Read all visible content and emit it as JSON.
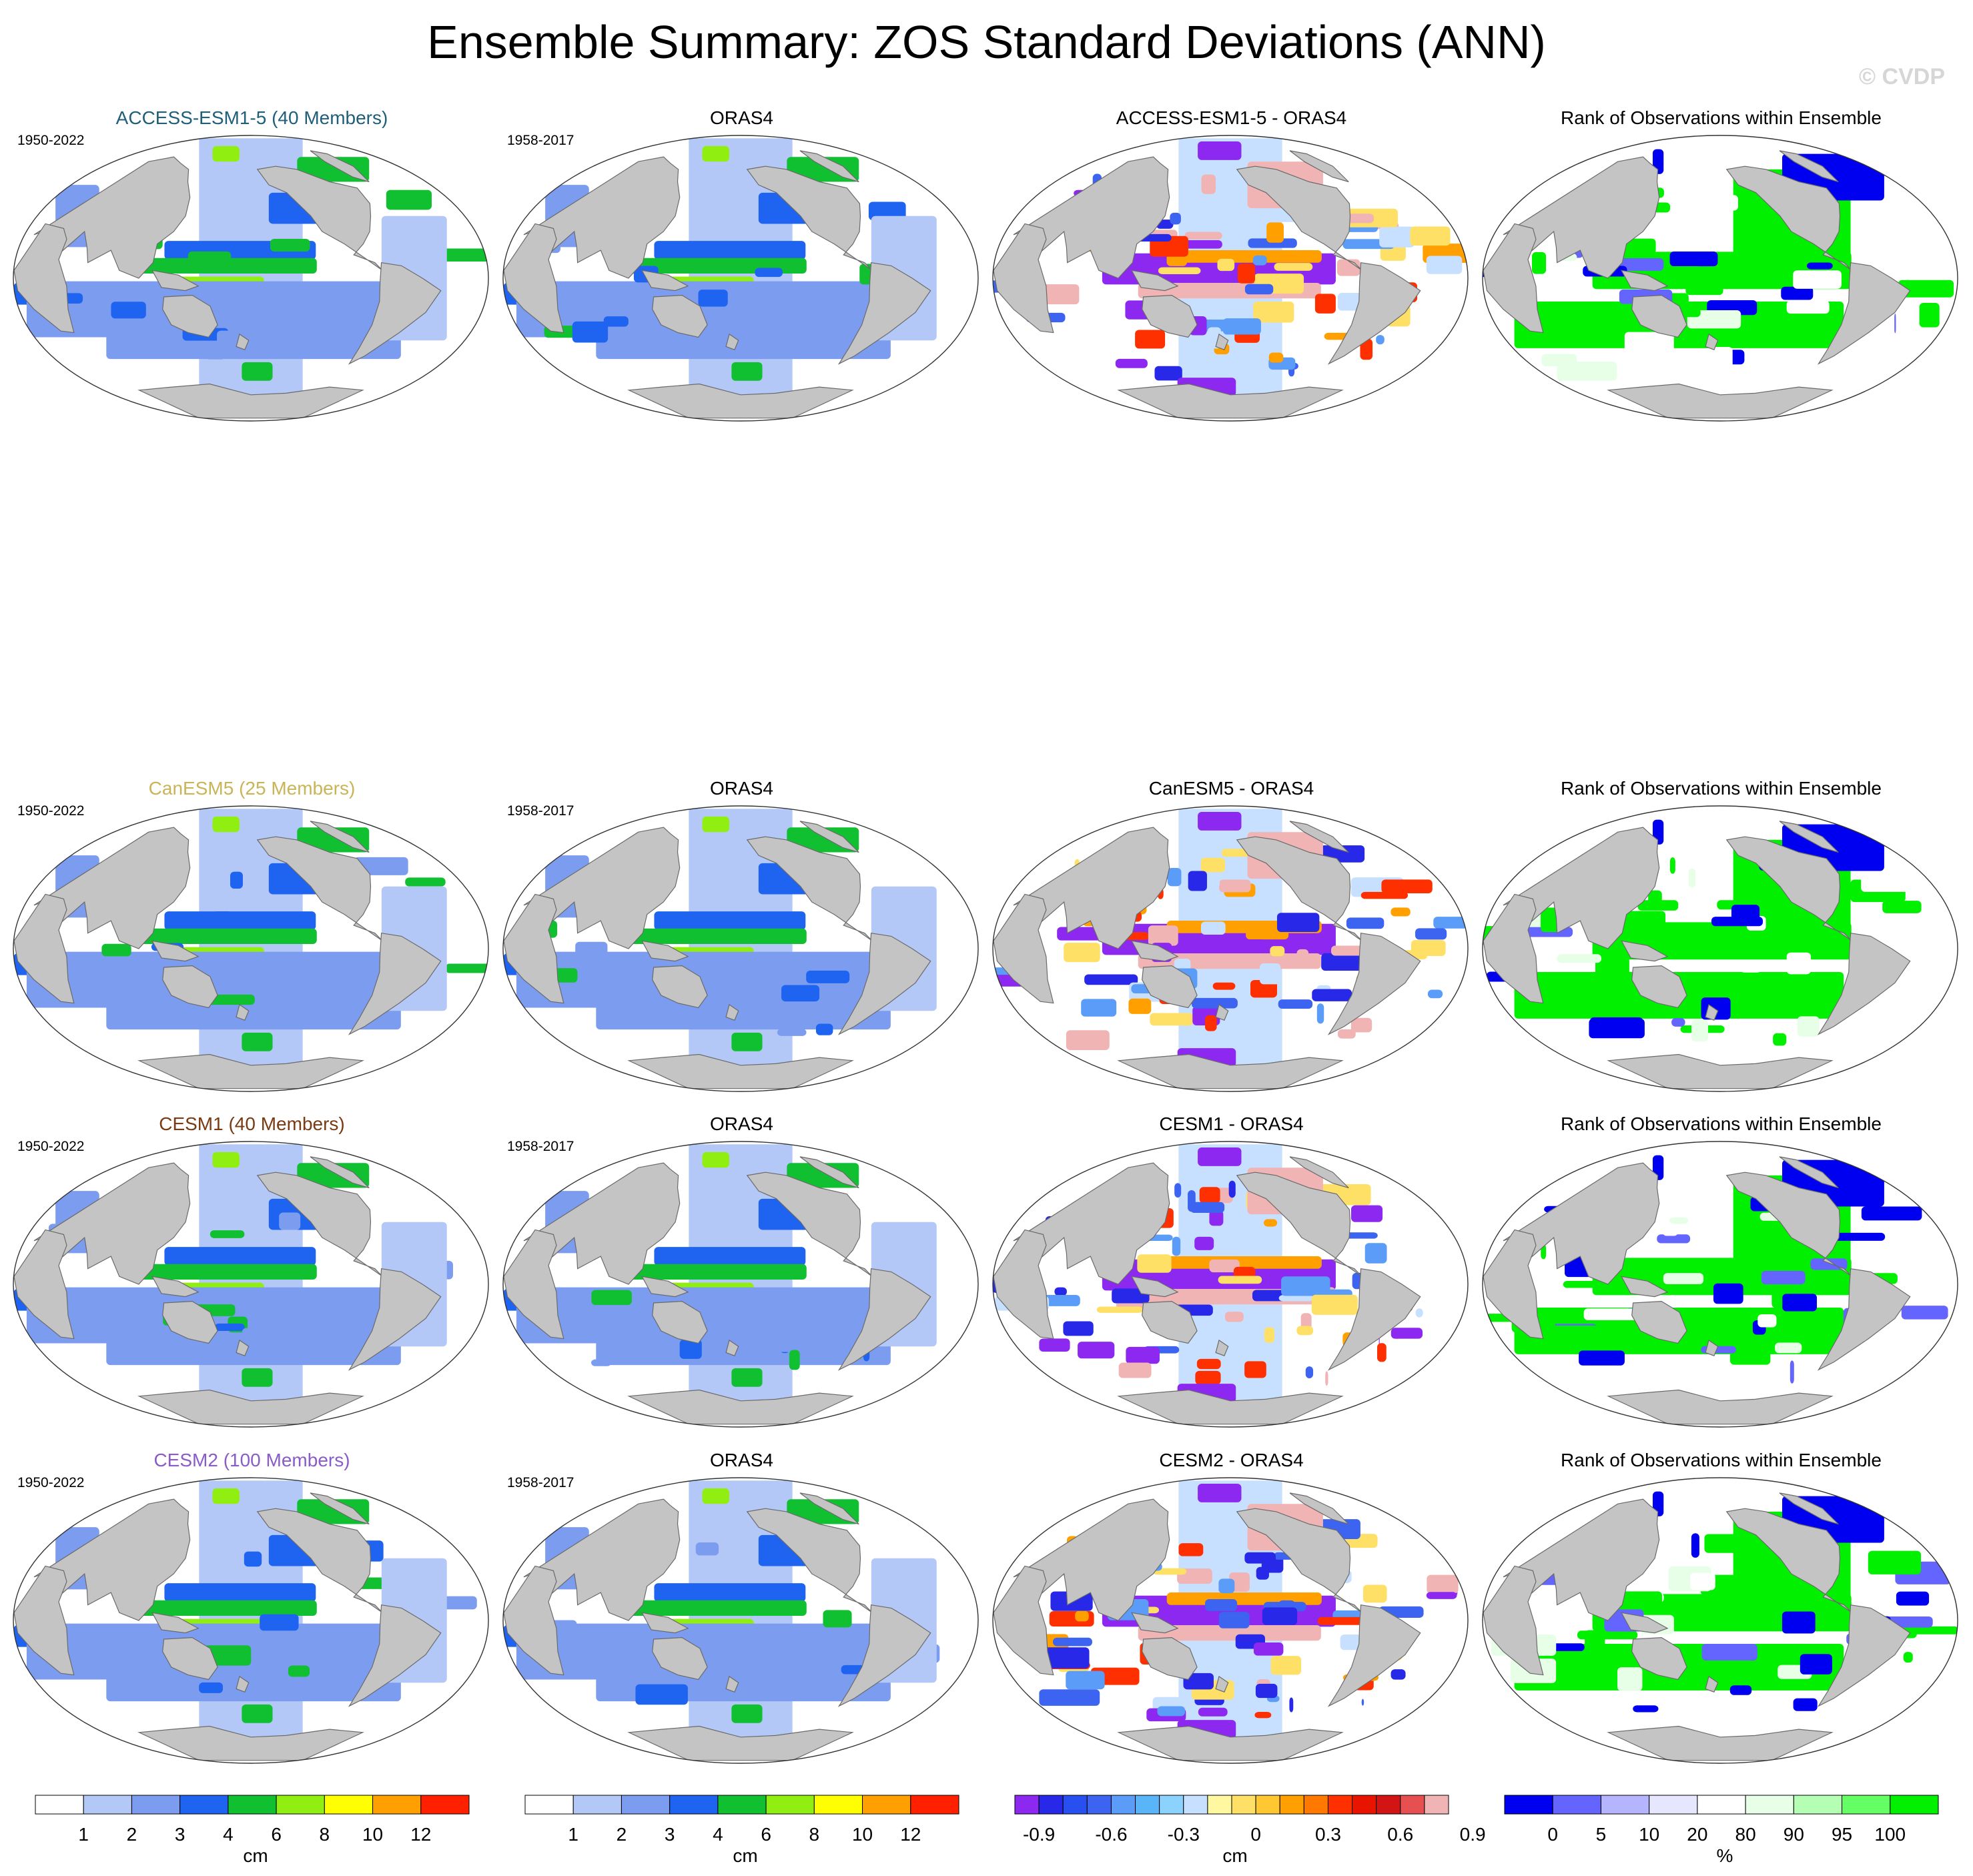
{
  "title": "Ensemble Summary: ZOS Standard Deviations (ANN)",
  "credit": "© CVDP",
  "colors": {
    "land": "#c4c4c4",
    "ocean_sd": [
      "#ffffff",
      "#b4c8f8",
      "#7c9cf0",
      "#1e64f0",
      "#10c030",
      "#90ee10",
      "#ffff00",
      "#ffa000",
      "#ff2000"
    ],
    "ocean_diff": [
      "#8c28f0",
      "#2828e8",
      "#3c64f0",
      "#5a9cf8",
      "#c8e0ff",
      "#ffe066",
      "#ffa000",
      "#ff3000",
      "#f0b4b4"
    ],
    "ocean_rank": [
      "#0000f0",
      "#6464ff",
      "#b4b4ff",
      "#e6e6ff",
      "#ffffff",
      "#e6ffe6",
      "#b4ffb4",
      "#64ff64",
      "#00f000"
    ]
  },
  "rows": [
    {
      "model": {
        "title": "ACCESS-ESM1-5 (40 Members)",
        "years": "1950-2022",
        "title_color": "#1f5f7a"
      },
      "obs": {
        "title": "ORAS4",
        "years": "1958-2017"
      },
      "diff": {
        "title": "ACCESS-ESM1-5 - ORAS4"
      },
      "rank": {
        "title": "Rank of Observations within Ensemble"
      }
    },
    {
      "model": {
        "title": "CanESM5 (25 Members)",
        "years": "1950-2022",
        "title_color": "#c9b458"
      },
      "obs": {
        "title": "ORAS4",
        "years": "1958-2017"
      },
      "diff": {
        "title": "CanESM5 - ORAS4"
      },
      "rank": {
        "title": "Rank of Observations within Ensemble"
      }
    },
    {
      "model": {
        "title": "CESM1 (40 Members)",
        "years": "1950-2022",
        "title_color": "#7a3a12"
      },
      "obs": {
        "title": "ORAS4",
        "years": "1958-2017"
      },
      "diff": {
        "title": "CESM1 - ORAS4"
      },
      "rank": {
        "title": "Rank of Observations within Ensemble"
      }
    },
    {
      "model": {
        "title": "CESM2 (100 Members)",
        "years": "1950-2022",
        "title_color": "#8a5cc8"
      },
      "obs": {
        "title": "ORAS4",
        "years": "1958-2017"
      },
      "diff": {
        "title": "CESM2 - ORAS4"
      },
      "rank": {
        "title": "Rank of Observations within Ensemble"
      }
    }
  ],
  "colorbars": {
    "sd_model": {
      "colors": [
        "#ffffff",
        "#b4c8f8",
        "#7c9cf0",
        "#1e64f0",
        "#10c030",
        "#90ee10",
        "#ffff00",
        "#ffa000",
        "#ff2000"
      ],
      "labels": [
        "1",
        "2",
        "3",
        "4",
        "6",
        "8",
        "10",
        "12"
      ],
      "unit": "cm"
    },
    "sd_obs": {
      "colors": [
        "#ffffff",
        "#b4c8f8",
        "#7c9cf0",
        "#1e64f0",
        "#10c030",
        "#90ee10",
        "#ffff00",
        "#ffa000",
        "#ff2000"
      ],
      "labels": [
        "1",
        "2",
        "3",
        "4",
        "6",
        "8",
        "10",
        "12"
      ],
      "unit": "cm"
    },
    "diff": {
      "colors": [
        "#8c28f0",
        "#2828e8",
        "#2850f0",
        "#3c64f0",
        "#5a9cf8",
        "#5ab4f8",
        "#8cd2ff",
        "#c8e0ff",
        "#fff8a0",
        "#ffe066",
        "#ffc832",
        "#ffa000",
        "#ff7800",
        "#ff3000",
        "#e81400",
        "#d21414",
        "#e65050",
        "#f0b4b4"
      ],
      "labels": [
        "-0.9",
        "-0.6",
        "-0.3",
        "0",
        "0.3",
        "0.6",
        "0.9"
      ],
      "unit": "cm"
    },
    "rank": {
      "colors": [
        "#0000f0",
        "#6464ff",
        "#b4b4ff",
        "#e6e6ff",
        "#ffffff",
        "#e6ffe6",
        "#b4ffb4",
        "#64ff64",
        "#00f000"
      ],
      "labels": [
        "0",
        "5",
        "10",
        "20",
        "80",
        "90",
        "95",
        "100"
      ],
      "unit": "%"
    }
  }
}
